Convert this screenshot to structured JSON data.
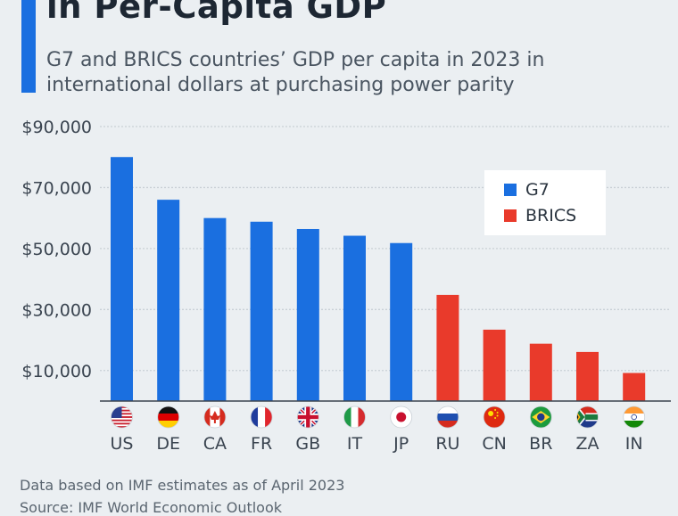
{
  "header": {
    "title": "in Per-Capita GDP",
    "subtitle": "G7 and BRICS countries’ GDP per capita in 2023 in international dollars at purchasing power parity"
  },
  "colors": {
    "accent": "#1a6fe0",
    "g7": "#1a6fe0",
    "brics": "#e93a2b",
    "grid": "#c9d0d6",
    "axis_text": "#3a4450"
  },
  "legend": {
    "items": [
      {
        "label": "G7",
        "color": "#1a6fe0"
      },
      {
        "label": "BRICS",
        "color": "#e93a2b"
      }
    ]
  },
  "chart_data": {
    "type": "bar",
    "title": "in Per-Capita GDP",
    "subtitle": "G7 and BRICS countries’ GDP per capita in 2023 in international dollars at purchasing power parity",
    "xlabel": "",
    "ylabel": "",
    "ylim": [
      0,
      90000
    ],
    "yticks": [
      10000,
      30000,
      50000,
      70000,
      90000
    ],
    "ytick_labels": [
      "$10,000",
      "$30,000",
      "$50,000",
      "$70,000",
      "$90,000"
    ],
    "grid": true,
    "legend_position": "top-right",
    "categories": [
      "US",
      "DE",
      "CA",
      "FR",
      "GB",
      "IT",
      "JP",
      "RU",
      "CN",
      "BR",
      "ZA",
      "IN"
    ],
    "values": [
      80000,
      66000,
      60000,
      58800,
      56400,
      54200,
      51800,
      34800,
      23400,
      18800,
      16100,
      9200
    ],
    "groups": [
      "G7",
      "G7",
      "G7",
      "G7",
      "G7",
      "G7",
      "G7",
      "BRICS",
      "BRICS",
      "BRICS",
      "BRICS",
      "BRICS"
    ],
    "flag_icons": [
      "us-flag-icon",
      "de-flag-icon",
      "ca-flag-icon",
      "fr-flag-icon",
      "gb-flag-icon",
      "it-flag-icon",
      "jp-flag-icon",
      "ru-flag-icon",
      "cn-flag-icon",
      "br-flag-icon",
      "za-flag-icon",
      "in-flag-icon"
    ]
  },
  "footer": {
    "note": "Data based on IMF estimates as of April 2023",
    "source": "Source: IMF World Economic Outlook"
  }
}
